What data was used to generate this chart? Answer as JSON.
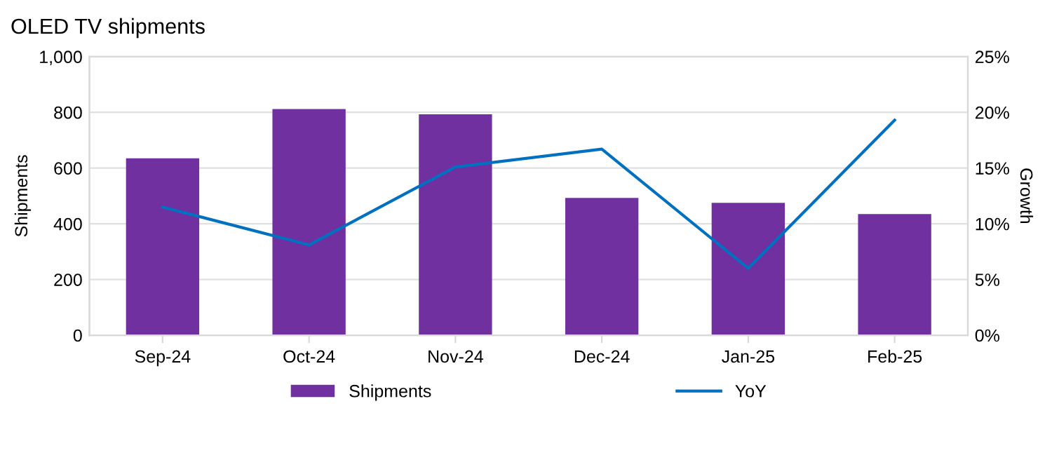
{
  "chart_data": {
    "type": "bar",
    "title": "OLED TV shipments",
    "ylabel": "Shipments",
    "y2label": "Growth",
    "categories": [
      "Sep-24",
      "Oct-24",
      "Nov-24",
      "Dec-24",
      "Jan-25",
      "Feb-25"
    ],
    "series": [
      {
        "name": "Shipments",
        "color": "#7030a0",
        "values": [
          635,
          812,
          793,
          493,
          475,
          435
        ]
      },
      {
        "name": "YoY",
        "type": "line",
        "axis": "y2",
        "color": "#0070c0",
        "values": [
          11.5,
          8.1,
          15.1,
          16.7,
          6.0,
          19.3
        ]
      }
    ],
    "ylim": [
      0,
      1000
    ],
    "yticks": [
      0,
      200,
      400,
      600,
      800,
      {
        "value": 1000,
        "label": "1,000"
      }
    ],
    "y2lim": [
      0,
      25
    ],
    "y2ticks": [
      {
        "value": 0,
        "label": "0%"
      },
      {
        "value": 5,
        "label": "5%"
      },
      {
        "value": 10,
        "label": "10%"
      },
      {
        "value": 15,
        "label": "15%"
      },
      {
        "value": 20,
        "label": "20%"
      },
      {
        "value": 25,
        "label": "25%"
      }
    ],
    "grid": "y",
    "legend": "bottom",
    "marker": "none",
    "line_style": "solid"
  }
}
